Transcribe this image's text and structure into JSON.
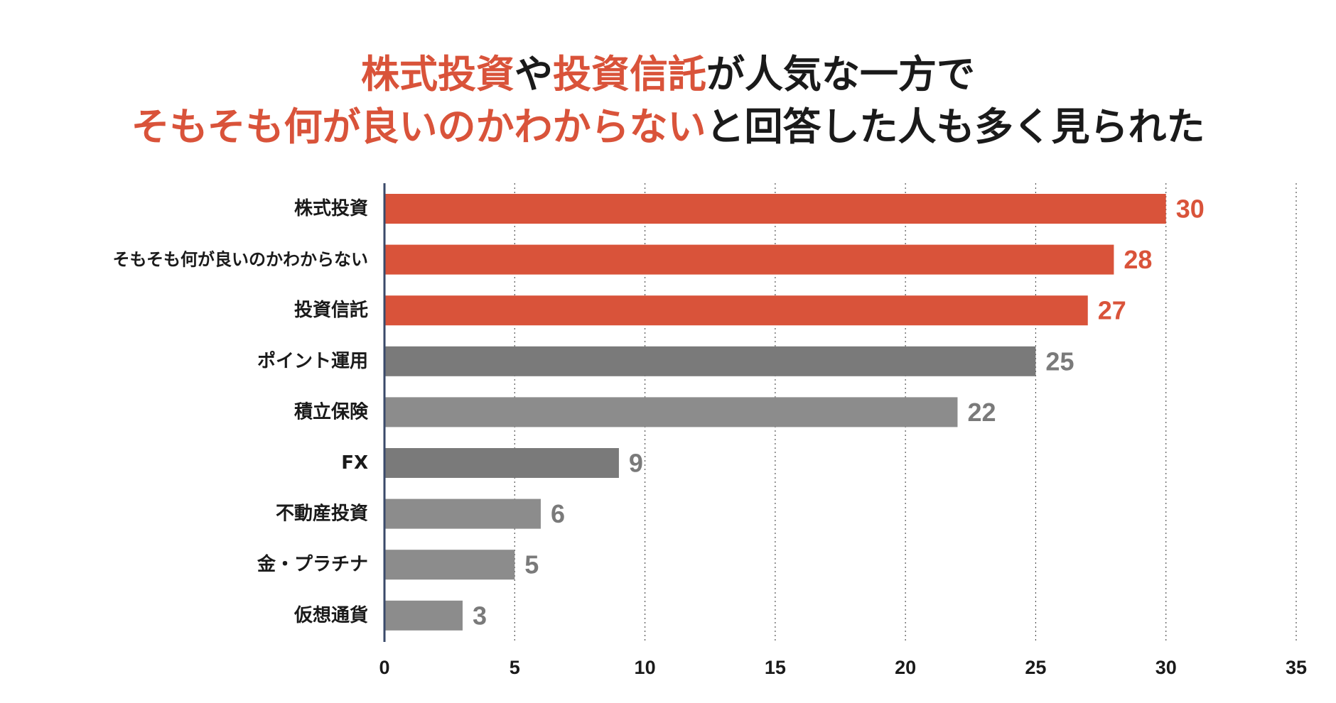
{
  "title": {
    "line1": [
      {
        "text": "株式投資",
        "highlight": true
      },
      {
        "text": "や",
        "highlight": false
      },
      {
        "text": "投資信託",
        "highlight": true
      },
      {
        "text": "が人気な一方で",
        "highlight": false
      }
    ],
    "line2": [
      {
        "text": "そもそも何が良いのかわからない",
        "highlight": true
      },
      {
        "text": "と回答した人も多く見られた",
        "highlight": false
      }
    ]
  },
  "colors": {
    "highlight": "#d9533a",
    "text": "#1a1a1a",
    "gray_dark": "#7a7a7a",
    "gray_light": "#8c8c8c",
    "axis": "#3a4a6a",
    "grid": "#555555"
  },
  "chart_data": {
    "type": "bar",
    "orientation": "horizontal",
    "categories": [
      "株式投資",
      "そもそも何が良いのかわからない",
      "投資信託",
      "ポイント運用",
      "積立保険",
      "FX",
      "不動産投資",
      "金・プラチナ",
      "仮想通貨"
    ],
    "values": [
      30,
      28,
      27,
      25,
      22,
      9,
      6,
      5,
      3
    ],
    "highlighted": [
      true,
      true,
      true,
      false,
      false,
      false,
      false,
      false,
      false
    ],
    "shade": [
      "highlight",
      "highlight",
      "highlight",
      "dark",
      "light",
      "dark",
      "light",
      "light",
      "light"
    ],
    "xlim": [
      0,
      35
    ],
    "xticks": [
      0,
      5,
      10,
      15,
      20,
      25,
      30,
      35
    ],
    "grid": "vertical-dotted",
    "xlabel": "",
    "ylabel": ""
  }
}
